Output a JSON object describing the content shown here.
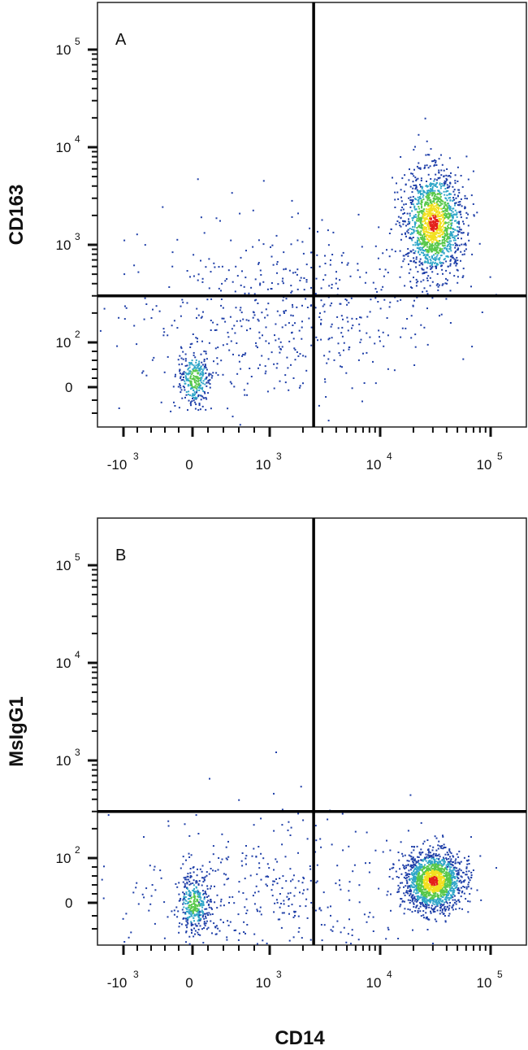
{
  "chart_data": [
    {
      "type": "scatter",
      "panel_label": "A",
      "xlabel": "",
      "ylabel": "CD163",
      "x_scale": "biexponential",
      "y_scale": "biexponential",
      "x_ticks": [
        {
          "base": "-10",
          "exp": "3",
          "value": -1000
        },
        {
          "base": "0",
          "exp": "",
          "value": 0
        },
        {
          "base": "10",
          "exp": "3",
          "value": 1000
        },
        {
          "base": "10",
          "exp": "4",
          "value": 10000
        },
        {
          "base": "10",
          "exp": "5",
          "value": 100000
        }
      ],
      "y_ticks": [
        {
          "base": "0",
          "exp": "",
          "value": 0
        },
        {
          "base": "10",
          "exp": "2",
          "value": 100
        },
        {
          "base": "10",
          "exp": "3",
          "value": 1000
        },
        {
          "base": "10",
          "exp": "4",
          "value": 10000
        },
        {
          "base": "10",
          "exp": "5",
          "value": 100000
        }
      ],
      "quadrant_gate": {
        "x": 2500,
        "y": 300
      },
      "populations": [
        {
          "name": "",
          "center": [
            30000,
            1700
          ],
          "count": 1500,
          "shape": "dense"
        },
        {
          "name": "",
          "center": [
            20,
            20
          ],
          "count": 300,
          "shape": "dense"
        },
        {
          "name": "",
          "center": [
            1200,
            200
          ],
          "count": 550,
          "shape": "diffuse"
        }
      ]
    },
    {
      "type": "scatter",
      "panel_label": "B",
      "xlabel": "CD14",
      "ylabel": "MsIgG1",
      "x_scale": "biexponential",
      "y_scale": "biexponential",
      "x_ticks": [
        {
          "base": "-10",
          "exp": "3",
          "value": -1000
        },
        {
          "base": "0",
          "exp": "",
          "value": 0
        },
        {
          "base": "10",
          "exp": "3",
          "value": 1000
        },
        {
          "base": "10",
          "exp": "4",
          "value": 10000
        },
        {
          "base": "10",
          "exp": "5",
          "value": 100000
        }
      ],
      "y_ticks": [
        {
          "base": "0",
          "exp": "",
          "value": 0
        },
        {
          "base": "10",
          "exp": "2",
          "value": 100
        },
        {
          "base": "10",
          "exp": "3",
          "value": 1000
        },
        {
          "base": "10",
          "exp": "4",
          "value": 10000
        },
        {
          "base": "10",
          "exp": "5",
          "value": 100000
        }
      ],
      "quadrant_gate": {
        "x": 2500,
        "y": 300
      },
      "populations": [
        {
          "name": "",
          "center": [
            30000,
            50
          ],
          "count": 1600,
          "shape": "dense"
        },
        {
          "name": "",
          "center": [
            10,
            0
          ],
          "count": 350,
          "shape": "dense"
        },
        {
          "name": "",
          "center": [
            1000,
            0
          ],
          "count": 450,
          "shape": "diffuse"
        }
      ]
    }
  ],
  "colors": {
    "density_low": "#1f3fa8",
    "density_mid_low": "#2fa6c8",
    "density_mid": "#58c84a",
    "density_high": "#f2e020",
    "density_peak": "#e41f1a",
    "gate_line": "#000000"
  }
}
